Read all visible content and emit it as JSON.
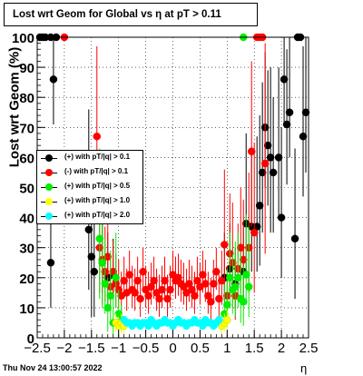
{
  "chart_data": {
    "type": "scatter",
    "title": "Lost wrt Geom for Global vs  η at pT > 0.11",
    "xlabel": "η",
    "ylabel": "Lost wrt Geom (%)",
    "xlim": [
      -2.5,
      2.5
    ],
    "ylim": [
      0,
      100
    ],
    "x_ticks": [
      -2.5,
      -2,
      -1.5,
      -1,
      -0.5,
      0,
      0.5,
      1,
      1.5,
      2,
      2.5
    ],
    "x_tick_labels": [
      "−2.5",
      "−2",
      "−1.5",
      "−1",
      "−0.5",
      "0",
      "0.5",
      "1",
      "1.5",
      "2",
      "2.5"
    ],
    "y_ticks": [
      0,
      10,
      20,
      30,
      40,
      50,
      60,
      70,
      80,
      90,
      100
    ],
    "y_tick_labels": [
      "0",
      "10",
      "20",
      "30",
      "40",
      "50",
      "60",
      "70",
      "80",
      "90",
      "100"
    ],
    "grid": true,
    "legend_position": "left",
    "series": [
      {
        "name": "(+) with pT/|q| > 0.1",
        "color": "#000000",
        "points": [
          [
            -2.45,
            100,
            0,
            0
          ],
          [
            -2.4,
            100,
            0,
            0
          ],
          [
            -2.35,
            100,
            0,
            0
          ],
          [
            -2.25,
            100,
            0,
            0
          ],
          [
            -2.15,
            100,
            0,
            0
          ],
          [
            -2.2,
            86,
            25,
            15
          ],
          [
            -2.25,
            25,
            20,
            15
          ],
          [
            -1.55,
            36,
            40,
            20
          ],
          [
            -1.5,
            27,
            30,
            20
          ],
          [
            -1.45,
            22,
            25,
            15
          ],
          [
            -1.3,
            25,
            20,
            10
          ],
          [
            -1.2,
            20,
            15,
            10
          ],
          [
            -1.1,
            21,
            12,
            8
          ],
          [
            0.95,
            20,
            15,
            8
          ],
          [
            1.05,
            23,
            15,
            10
          ],
          [
            1.15,
            18,
            12,
            8
          ],
          [
            1.3,
            22,
            15,
            10
          ],
          [
            1.35,
            38,
            30,
            15
          ],
          [
            1.45,
            37,
            25,
            15
          ],
          [
            1.55,
            37,
            30,
            15
          ],
          [
            1.6,
            44,
            30,
            20
          ],
          [
            1.65,
            55,
            30,
            20
          ],
          [
            1.7,
            70,
            25,
            20
          ],
          [
            1.75,
            64,
            25,
            20
          ],
          [
            1.8,
            60,
            30,
            25
          ],
          [
            1.85,
            55,
            25,
            20
          ],
          [
            1.95,
            60,
            30,
            20
          ],
          [
            2.0,
            40,
            30,
            20
          ],
          [
            2.05,
            86,
            20,
            15
          ],
          [
            2.1,
            71,
            25,
            20
          ],
          [
            2.15,
            75,
            25,
            15
          ],
          [
            2.25,
            33,
            30,
            20
          ],
          [
            2.3,
            100,
            0,
            0
          ],
          [
            2.35,
            100,
            0,
            0
          ],
          [
            2.4,
            67,
            30,
            20
          ],
          [
            2.45,
            75,
            25,
            20
          ]
        ]
      },
      {
        "name": "(-) with pT/|q| > 0.1",
        "color": "#ff0000",
        "points": [
          [
            -2.0,
            100,
            0,
            0
          ],
          [
            -1.4,
            67,
            30,
            25
          ],
          [
            -1.35,
            30,
            25,
            15
          ],
          [
            -1.3,
            26,
            20,
            15
          ],
          [
            -1.25,
            22,
            15,
            10
          ],
          [
            -1.2,
            27,
            20,
            10
          ],
          [
            -1.15,
            17,
            10,
            8
          ],
          [
            -1.1,
            22,
            10,
            8
          ],
          [
            -1.05,
            18,
            10,
            8
          ],
          [
            -1.0,
            16,
            10,
            6
          ],
          [
            -0.95,
            14,
            8,
            6
          ],
          [
            -0.9,
            19,
            8,
            6
          ],
          [
            -0.85,
            15,
            8,
            6
          ],
          [
            -0.8,
            21,
            8,
            6
          ],
          [
            -0.75,
            16,
            8,
            6
          ],
          [
            -0.7,
            15,
            8,
            6
          ],
          [
            -0.65,
            19,
            8,
            6
          ],
          [
            -0.6,
            13,
            8,
            6
          ],
          [
            -0.55,
            22,
            8,
            6
          ],
          [
            -0.5,
            16,
            8,
            6
          ],
          [
            -0.45,
            14,
            8,
            6
          ],
          [
            -0.4,
            17,
            8,
            6
          ],
          [
            -0.35,
            19,
            8,
            6
          ],
          [
            -0.3,
            15,
            8,
            6
          ],
          [
            -0.25,
            13,
            8,
            6
          ],
          [
            -0.2,
            16,
            8,
            6
          ],
          [
            -0.15,
            19,
            8,
            6
          ],
          [
            -0.1,
            13,
            8,
            6
          ],
          [
            -0.05,
            16,
            8,
            6
          ],
          [
            0.0,
            21,
            8,
            6
          ],
          [
            0.05,
            19,
            8,
            6
          ],
          [
            0.1,
            20,
            8,
            6
          ],
          [
            0.15,
            18,
            8,
            6
          ],
          [
            0.2,
            17,
            8,
            6
          ],
          [
            0.25,
            15,
            8,
            6
          ],
          [
            0.3,
            18,
            8,
            6
          ],
          [
            0.35,
            16,
            8,
            6
          ],
          [
            0.4,
            14,
            8,
            6
          ],
          [
            0.45,
            19,
            8,
            6
          ],
          [
            0.5,
            17,
            8,
            6
          ],
          [
            0.55,
            21,
            8,
            6
          ],
          [
            0.6,
            18,
            8,
            6
          ],
          [
            0.65,
            14,
            8,
            6
          ],
          [
            0.7,
            12,
            8,
            6
          ],
          [
            0.75,
            18,
            8,
            6
          ],
          [
            0.8,
            22,
            8,
            6
          ],
          [
            0.85,
            13,
            8,
            6
          ],
          [
            0.9,
            19,
            10,
            8
          ],
          [
            0.95,
            31,
            25,
            15
          ],
          [
            1.0,
            14,
            10,
            8
          ],
          [
            1.05,
            28,
            20,
            15
          ],
          [
            1.1,
            25,
            20,
            15
          ],
          [
            1.15,
            14,
            12,
            8
          ],
          [
            1.2,
            23,
            15,
            10
          ],
          [
            1.25,
            30,
            20,
            15
          ],
          [
            1.3,
            26,
            20,
            15
          ],
          [
            1.4,
            30,
            25,
            15
          ],
          [
            1.45,
            62,
            30,
            25
          ],
          [
            1.5,
            35,
            30,
            20
          ],
          [
            1.55,
            100,
            0,
            0
          ],
          [
            1.6,
            100,
            0,
            0
          ],
          [
            1.65,
            100,
            0,
            0
          ],
          [
            1.7,
            58,
            40,
            30
          ]
        ]
      },
      {
        "name": "(+) with pT/|q| > 0.5",
        "color": "#00ee00",
        "points": [
          [
            -1.35,
            33,
            30,
            20
          ],
          [
            -1.3,
            25,
            20,
            15
          ],
          [
            -1.25,
            18,
            15,
            10
          ],
          [
            -1.2,
            10,
            10,
            8
          ],
          [
            -1.15,
            14,
            15,
            8
          ],
          [
            -1.1,
            5,
            10,
            4
          ],
          [
            -1.05,
            20,
            15,
            10
          ],
          [
            -1.0,
            8,
            8,
            5
          ],
          [
            -0.95,
            6,
            5,
            4
          ],
          [
            0.95,
            8,
            10,
            5
          ],
          [
            1.0,
            11,
            12,
            8
          ],
          [
            1.05,
            20,
            15,
            10
          ],
          [
            1.1,
            16,
            12,
            8
          ],
          [
            1.15,
            17,
            15,
            10
          ],
          [
            1.2,
            20,
            15,
            10
          ],
          [
            1.25,
            13,
            15,
            8
          ],
          [
            1.3,
            12,
            12,
            8
          ],
          [
            1.35,
            21,
            20,
            10
          ],
          [
            1.4,
            17,
            20,
            10
          ],
          [
            1.3,
            100,
            0,
            0
          ]
        ]
      },
      {
        "name": "(+) with pT/|q| > 1.0",
        "color": "#ffff00",
        "points": [
          [
            -1.05,
            5,
            3,
            3
          ],
          [
            -1.0,
            4,
            3,
            3
          ],
          [
            -0.95,
            5,
            3,
            3
          ],
          [
            -0.9,
            4,
            3,
            3
          ],
          [
            0.9,
            4,
            3,
            3
          ],
          [
            0.95,
            5,
            3,
            3
          ],
          [
            1.0,
            6,
            3,
            3
          ]
        ]
      },
      {
        "name": "(+) with pT/|q| > 2.0",
        "color": "#00ffff",
        "points": [
          [
            -0.9,
            6,
            1,
            1
          ],
          [
            -0.85,
            5,
            1,
            1
          ],
          [
            -0.8,
            5,
            1,
            1
          ],
          [
            -0.75,
            4,
            1,
            1
          ],
          [
            -0.7,
            5,
            1,
            1
          ],
          [
            -0.65,
            5,
            1,
            1
          ],
          [
            -0.6,
            4,
            1,
            1
          ],
          [
            -0.55,
            5,
            1,
            1
          ],
          [
            -0.5,
            5,
            1,
            1
          ],
          [
            -0.45,
            4,
            1,
            1
          ],
          [
            -0.4,
            6,
            1,
            1
          ],
          [
            -0.35,
            5,
            1,
            1
          ],
          [
            -0.3,
            4,
            1,
            1
          ],
          [
            -0.25,
            5,
            1,
            1
          ],
          [
            -0.2,
            5,
            1,
            1
          ],
          [
            -0.15,
            6,
            1,
            1
          ],
          [
            -0.1,
            5,
            1,
            1
          ],
          [
            -0.05,
            5,
            1,
            1
          ],
          [
            0.0,
            4,
            1,
            1
          ],
          [
            0.05,
            5,
            1,
            1
          ],
          [
            0.1,
            6,
            1,
            1
          ],
          [
            0.15,
            5,
            1,
            1
          ],
          [
            0.2,
            5,
            1,
            1
          ],
          [
            0.25,
            4,
            1,
            1
          ],
          [
            0.3,
            5,
            1,
            1
          ],
          [
            0.35,
            5,
            1,
            1
          ],
          [
            0.4,
            6,
            1,
            1
          ],
          [
            0.45,
            5,
            1,
            1
          ],
          [
            0.5,
            5,
            1,
            1
          ],
          [
            0.55,
            4,
            1,
            1
          ],
          [
            0.6,
            6,
            1,
            1
          ],
          [
            0.65,
            5,
            1,
            1
          ],
          [
            0.7,
            5,
            1,
            1
          ],
          [
            0.75,
            4,
            1,
            1
          ],
          [
            0.8,
            5,
            1,
            1
          ],
          [
            0.85,
            6,
            1,
            1
          ]
        ]
      }
    ]
  },
  "timestamp": "Thu Nov 24 13:00:57 2022"
}
